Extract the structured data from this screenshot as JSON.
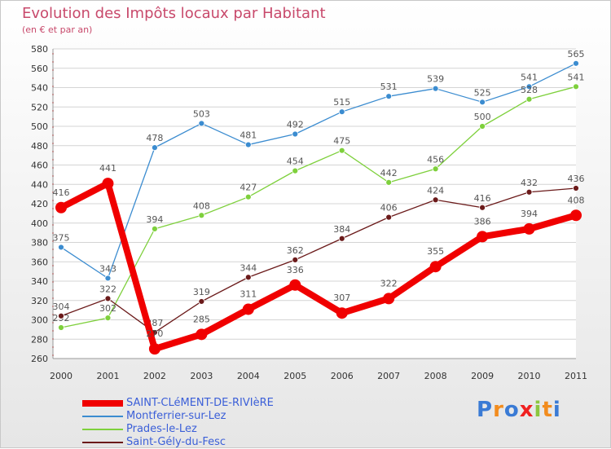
{
  "chart_data": {
    "type": "line",
    "title": "Evolution des Impôts locaux par Habitant",
    "subtitle": "(en € et par an)",
    "xlabel": "",
    "ylabel": "",
    "categories": [
      "2000",
      "2001",
      "2002",
      "2003",
      "2004",
      "2005",
      "2006",
      "2007",
      "2008",
      "2009",
      "2010",
      "2011"
    ],
    "ylim": [
      260,
      580
    ],
    "yticks": [
      260,
      280,
      300,
      320,
      340,
      360,
      380,
      400,
      420,
      440,
      460,
      480,
      500,
      520,
      540,
      560,
      580
    ],
    "grid": "horizontal",
    "series": [
      {
        "name": "Montferrier-sur-Lez",
        "color": "#3b8cd0",
        "thick": false,
        "values": [
          375,
          343,
          478,
          503,
          481,
          492,
          515,
          531,
          539,
          525,
          541,
          565
        ]
      },
      {
        "name": "Prades-le-Lez",
        "color": "#7ed03c",
        "thick": false,
        "values": [
          292,
          302,
          394,
          408,
          427,
          454,
          475,
          442,
          456,
          500,
          528,
          541
        ]
      },
      {
        "name": "Saint-Gély-du-Fesc",
        "color": "#6b1a1a",
        "thick": false,
        "values": [
          304,
          322,
          287,
          319,
          344,
          362,
          384,
          406,
          424,
          416,
          432,
          436
        ]
      },
      {
        "name": "SAINT-CLéMENT-DE-RIVIèRE",
        "color": "#f00000",
        "thick": true,
        "values": [
          416,
          441,
          270,
          285,
          311,
          336,
          307,
          322,
          355,
          386,
          394,
          408
        ]
      }
    ],
    "legend": [
      {
        "name": "SAINT-CLéMENT-DE-RIVIèRE",
        "color": "#f00000",
        "thick": true
      },
      {
        "name": "Montferrier-sur-Lez",
        "color": "#3b8cd0",
        "thick": false
      },
      {
        "name": "Prades-le-Lez",
        "color": "#7ed03c",
        "thick": false
      },
      {
        "name": "Saint-Gély-du-Fesc",
        "color": "#6b1a1a",
        "thick": false
      }
    ],
    "legend_position": "bottom-left"
  },
  "brand": {
    "text": "Proxiti",
    "letter_colors": [
      "#3a7bd5",
      "#f28c1e",
      "#3a7bd5",
      "#f02020",
      "#8cc63f",
      "#f28c1e",
      "#3a7bd5"
    ]
  }
}
